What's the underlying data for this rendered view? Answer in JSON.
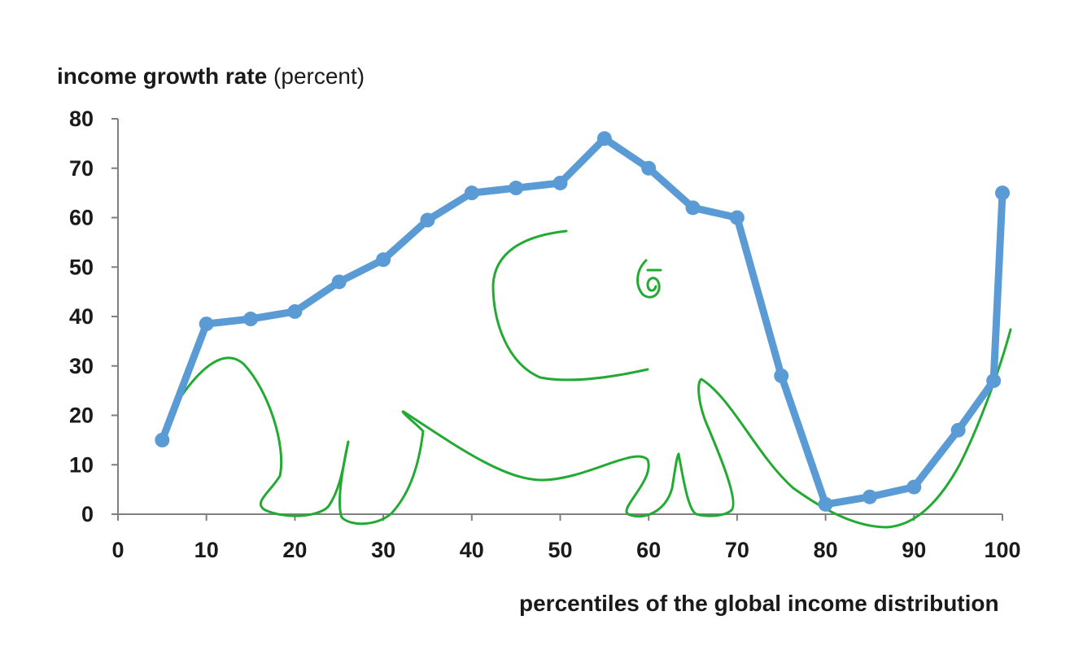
{
  "chart_data": {
    "type": "line",
    "ylabel_bold": "income growth rate",
    "ylabel_rest": " (percent)",
    "xlabel": "percentiles of the global income distribution",
    "xlim": [
      0,
      100
    ],
    "ylim": [
      0,
      80
    ],
    "x_ticks": [
      "0",
      "10",
      "20",
      "30",
      "40",
      "50",
      "60",
      "70",
      "80",
      "90",
      "100"
    ],
    "y_ticks": [
      "0",
      "10",
      "20",
      "30",
      "40",
      "50",
      "60",
      "70",
      "80"
    ],
    "grid": false,
    "series": [
      {
        "color": "#5b9bd5",
        "x": [
          5,
          10,
          15,
          20,
          25,
          30,
          35,
          40,
          45,
          50,
          55,
          60,
          65,
          70,
          75,
          80,
          85,
          90,
          95,
          99,
          100
        ],
        "y": [
          15,
          38.5,
          39.5,
          41,
          47,
          51.5,
          59.5,
          65,
          66,
          67,
          76,
          70,
          62,
          60,
          28,
          2,
          3.5,
          5.5,
          17,
          27,
          65
        ]
      }
    ],
    "annotation": {
      "description": "hand-drawn elephant outline",
      "color": "#22aa33"
    }
  }
}
